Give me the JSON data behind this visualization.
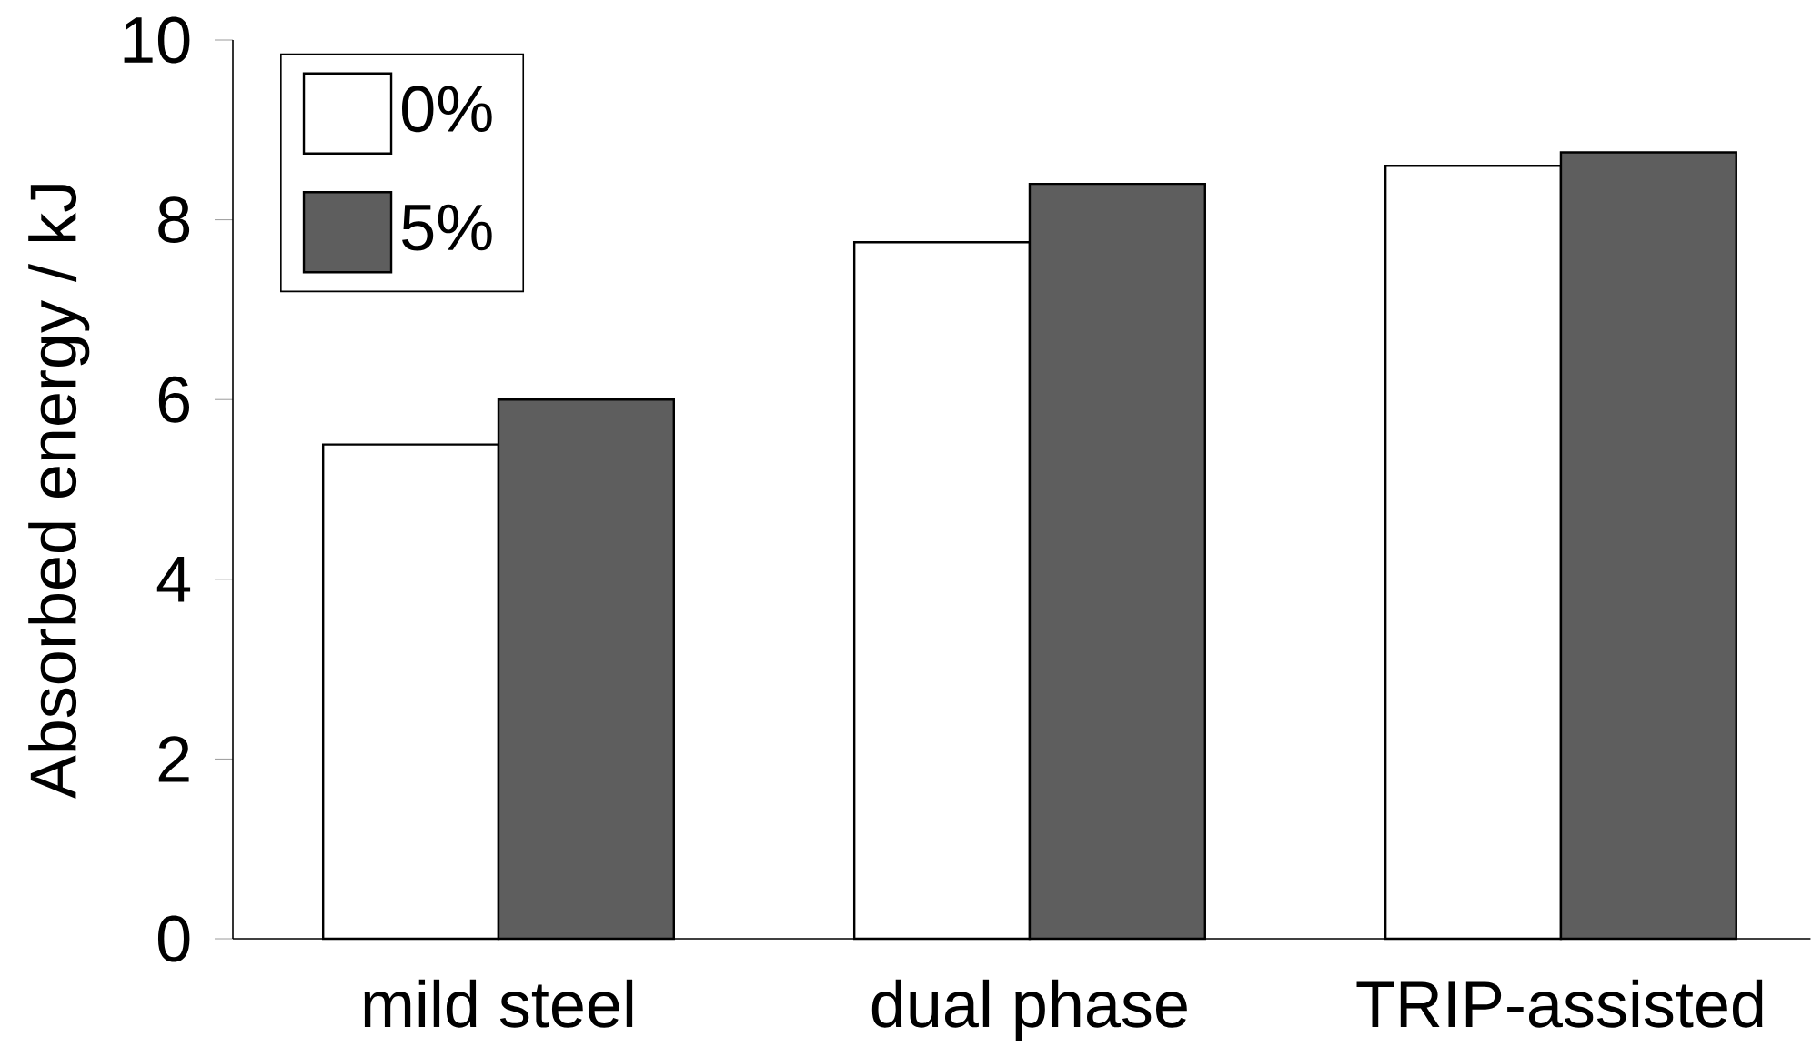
{
  "chart_data": {
    "type": "bar",
    "ylabel": "Absorbed energy / kJ",
    "categories": [
      "mild steel",
      "dual phase",
      "TRIP-assisted"
    ],
    "series": [
      {
        "name": "0%",
        "color": "#ffffff",
        "values": [
          5.5,
          7.75,
          8.6
        ]
      },
      {
        "name": "5%",
        "color": "#5e5e5e",
        "values": [
          6.0,
          8.4,
          8.75
        ]
      }
    ],
    "ylim": [
      0,
      10
    ],
    "yticks": [
      0,
      2,
      4,
      6,
      8,
      10
    ],
    "grid": false,
    "legend": "top left"
  }
}
